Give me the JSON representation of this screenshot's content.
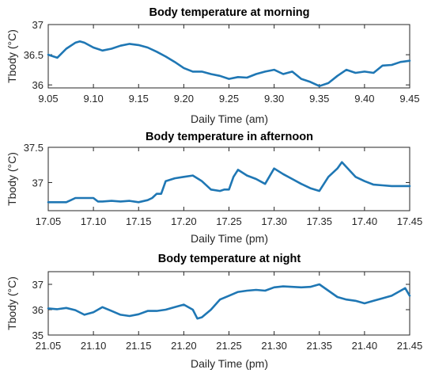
{
  "chart_data": [
    {
      "type": "line",
      "title": "Body temperature at morning",
      "xlabel": "Daily Time (am)",
      "ylabel": "Tbody (°C)",
      "xlim": [
        9.05,
        9.45
      ],
      "ylim": [
        35.95,
        37.0
      ],
      "xticks": [
        "9.05",
        "9.10",
        "9.15",
        "9.20",
        "9.25",
        "9.30",
        "9.35",
        "9.40",
        "9.45"
      ],
      "yticks": [
        "36",
        "36.5",
        "37"
      ],
      "color": "#1f77b4",
      "series": [
        {
          "x": [
            9.05,
            9.06,
            9.07,
            9.08,
            9.085,
            9.09,
            9.1,
            9.11,
            9.12,
            9.13,
            9.14,
            9.15,
            9.16,
            9.17,
            9.18,
            9.19,
            9.2,
            9.21,
            9.22,
            9.23,
            9.24,
            9.25,
            9.26,
            9.27,
            9.28,
            9.29,
            9.3,
            9.31,
            9.32,
            9.33,
            9.34,
            9.35,
            9.36,
            9.37,
            9.38,
            9.39,
            9.4,
            9.41,
            9.42,
            9.43,
            9.44,
            9.45
          ],
          "y": [
            36.5,
            36.45,
            36.6,
            36.7,
            36.72,
            36.7,
            36.62,
            36.57,
            36.6,
            36.65,
            36.68,
            36.66,
            36.62,
            36.55,
            36.47,
            36.38,
            36.28,
            36.22,
            36.22,
            36.18,
            36.15,
            36.1,
            36.13,
            36.12,
            36.18,
            36.22,
            36.25,
            36.18,
            36.22,
            36.1,
            36.05,
            35.98,
            36.03,
            36.15,
            36.25,
            36.2,
            36.22,
            36.2,
            36.32,
            36.33,
            36.38,
            36.4
          ]
        }
      ]
    },
    {
      "type": "line",
      "title": "Body temperature in afternoon",
      "xlabel": "Daily Time (pm)",
      "ylabel": "Tbody (°C)",
      "xlim": [
        17.05,
        17.45
      ],
      "ylim": [
        36.6,
        37.5
      ],
      "xticks": [
        "17.05",
        "17.10",
        "17.15",
        "17.20",
        "17.25",
        "17.30",
        "17.35",
        "17.40",
        "17.45"
      ],
      "yticks": [
        "37",
        "37.5"
      ],
      "color": "#1f77b4",
      "series": [
        {
          "x": [
            17.05,
            17.06,
            17.07,
            17.075,
            17.08,
            17.09,
            17.1,
            17.105,
            17.11,
            17.12,
            17.13,
            17.14,
            17.15,
            17.16,
            17.165,
            17.17,
            17.175,
            17.18,
            17.19,
            17.2,
            17.21,
            17.22,
            17.23,
            17.24,
            17.245,
            17.25,
            17.255,
            17.26,
            17.27,
            17.28,
            17.29,
            17.3,
            17.31,
            17.32,
            17.33,
            17.34,
            17.35,
            17.36,
            17.37,
            17.375,
            17.38,
            17.39,
            17.4,
            17.41,
            17.42,
            17.43,
            17.44,
            17.45
          ],
          "y": [
            36.72,
            36.72,
            36.72,
            36.75,
            36.78,
            36.78,
            36.78,
            36.73,
            36.73,
            36.74,
            36.73,
            36.74,
            36.72,
            36.75,
            36.78,
            36.84,
            36.84,
            37.02,
            37.06,
            37.08,
            37.1,
            37.02,
            36.9,
            36.88,
            36.9,
            36.9,
            37.08,
            37.18,
            37.1,
            37.05,
            36.98,
            37.2,
            37.12,
            37.05,
            36.98,
            36.92,
            36.88,
            37.08,
            37.2,
            37.29,
            37.22,
            37.08,
            37.02,
            36.97,
            36.96,
            36.95,
            36.95,
            36.95
          ]
        }
      ]
    },
    {
      "type": "line",
      "title": "Body temperature at night",
      "xlabel": "Daily Time (pm)",
      "ylabel": "Tbody (°C)",
      "xlim": [
        21.05,
        21.45
      ],
      "ylim": [
        35.0,
        37.5
      ],
      "xticks": [
        "21.05",
        "21.10",
        "21.15",
        "21.20",
        "21.25",
        "21.30",
        "21.35",
        "21.40",
        "21.45"
      ],
      "yticks": [
        "35",
        "36",
        "37"
      ],
      "color": "#1f77b4",
      "series": [
        {
          "x": [
            21.05,
            21.06,
            21.07,
            21.08,
            21.09,
            21.1,
            21.11,
            21.12,
            21.13,
            21.14,
            21.15,
            21.16,
            21.17,
            21.18,
            21.19,
            21.2,
            21.21,
            21.215,
            21.22,
            21.23,
            21.24,
            21.25,
            21.26,
            21.27,
            21.28,
            21.29,
            21.3,
            21.31,
            21.32,
            21.33,
            21.34,
            21.35,
            21.36,
            21.37,
            21.38,
            21.39,
            21.4,
            21.41,
            21.42,
            21.43,
            21.44,
            21.445,
            21.45
          ],
          "y": [
            36.05,
            36.02,
            36.07,
            35.98,
            35.8,
            35.9,
            36.1,
            35.95,
            35.8,
            35.75,
            35.82,
            35.95,
            35.95,
            36.0,
            36.1,
            36.2,
            36.0,
            35.65,
            35.7,
            36.0,
            36.4,
            36.55,
            36.7,
            36.75,
            36.78,
            36.75,
            36.88,
            36.92,
            36.9,
            36.88,
            36.9,
            37.0,
            36.75,
            36.5,
            36.4,
            36.35,
            36.25,
            36.35,
            36.45,
            36.55,
            36.75,
            36.85,
            36.55
          ]
        }
      ]
    }
  ]
}
